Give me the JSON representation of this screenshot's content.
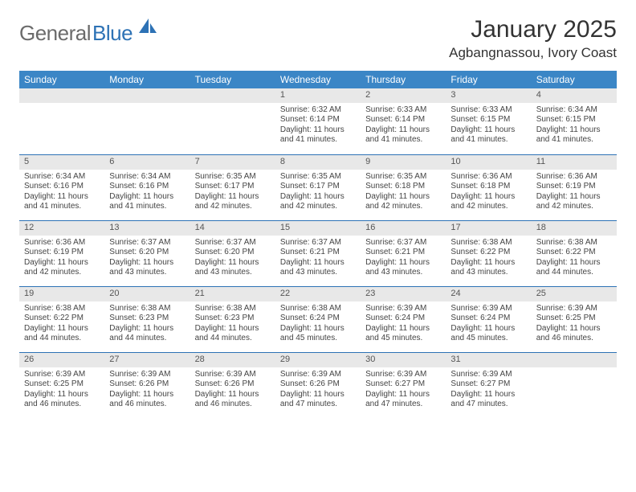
{
  "logo": {
    "text_general": "General",
    "text_blue": "Blue"
  },
  "title": "January 2025",
  "location": "Agbangnassou, Ivory Coast",
  "colors": {
    "header_bg": "#3b86c6",
    "daynum_bg": "#e8e8e8",
    "row_border": "#2d72b5",
    "logo_gray": "#6b6b6b",
    "logo_blue": "#2d72b5"
  },
  "day_headers": [
    "Sunday",
    "Monday",
    "Tuesday",
    "Wednesday",
    "Thursday",
    "Friday",
    "Saturday"
  ],
  "weeks": [
    [
      null,
      null,
      null,
      {
        "n": "1",
        "sr": "6:32 AM",
        "ss": "6:14 PM",
        "dl": "11 hours and 41 minutes."
      },
      {
        "n": "2",
        "sr": "6:33 AM",
        "ss": "6:14 PM",
        "dl": "11 hours and 41 minutes."
      },
      {
        "n": "3",
        "sr": "6:33 AM",
        "ss": "6:15 PM",
        "dl": "11 hours and 41 minutes."
      },
      {
        "n": "4",
        "sr": "6:34 AM",
        "ss": "6:15 PM",
        "dl": "11 hours and 41 minutes."
      }
    ],
    [
      {
        "n": "5",
        "sr": "6:34 AM",
        "ss": "6:16 PM",
        "dl": "11 hours and 41 minutes."
      },
      {
        "n": "6",
        "sr": "6:34 AM",
        "ss": "6:16 PM",
        "dl": "11 hours and 41 minutes."
      },
      {
        "n": "7",
        "sr": "6:35 AM",
        "ss": "6:17 PM",
        "dl": "11 hours and 42 minutes."
      },
      {
        "n": "8",
        "sr": "6:35 AM",
        "ss": "6:17 PM",
        "dl": "11 hours and 42 minutes."
      },
      {
        "n": "9",
        "sr": "6:35 AM",
        "ss": "6:18 PM",
        "dl": "11 hours and 42 minutes."
      },
      {
        "n": "10",
        "sr": "6:36 AM",
        "ss": "6:18 PM",
        "dl": "11 hours and 42 minutes."
      },
      {
        "n": "11",
        "sr": "6:36 AM",
        "ss": "6:19 PM",
        "dl": "11 hours and 42 minutes."
      }
    ],
    [
      {
        "n": "12",
        "sr": "6:36 AM",
        "ss": "6:19 PM",
        "dl": "11 hours and 42 minutes."
      },
      {
        "n": "13",
        "sr": "6:37 AM",
        "ss": "6:20 PM",
        "dl": "11 hours and 43 minutes."
      },
      {
        "n": "14",
        "sr": "6:37 AM",
        "ss": "6:20 PM",
        "dl": "11 hours and 43 minutes."
      },
      {
        "n": "15",
        "sr": "6:37 AM",
        "ss": "6:21 PM",
        "dl": "11 hours and 43 minutes."
      },
      {
        "n": "16",
        "sr": "6:37 AM",
        "ss": "6:21 PM",
        "dl": "11 hours and 43 minutes."
      },
      {
        "n": "17",
        "sr": "6:38 AM",
        "ss": "6:22 PM",
        "dl": "11 hours and 43 minutes."
      },
      {
        "n": "18",
        "sr": "6:38 AM",
        "ss": "6:22 PM",
        "dl": "11 hours and 44 minutes."
      }
    ],
    [
      {
        "n": "19",
        "sr": "6:38 AM",
        "ss": "6:22 PM",
        "dl": "11 hours and 44 minutes."
      },
      {
        "n": "20",
        "sr": "6:38 AM",
        "ss": "6:23 PM",
        "dl": "11 hours and 44 minutes."
      },
      {
        "n": "21",
        "sr": "6:38 AM",
        "ss": "6:23 PM",
        "dl": "11 hours and 44 minutes."
      },
      {
        "n": "22",
        "sr": "6:38 AM",
        "ss": "6:24 PM",
        "dl": "11 hours and 45 minutes."
      },
      {
        "n": "23",
        "sr": "6:39 AM",
        "ss": "6:24 PM",
        "dl": "11 hours and 45 minutes."
      },
      {
        "n": "24",
        "sr": "6:39 AM",
        "ss": "6:24 PM",
        "dl": "11 hours and 45 minutes."
      },
      {
        "n": "25",
        "sr": "6:39 AM",
        "ss": "6:25 PM",
        "dl": "11 hours and 46 minutes."
      }
    ],
    [
      {
        "n": "26",
        "sr": "6:39 AM",
        "ss": "6:25 PM",
        "dl": "11 hours and 46 minutes."
      },
      {
        "n": "27",
        "sr": "6:39 AM",
        "ss": "6:26 PM",
        "dl": "11 hours and 46 minutes."
      },
      {
        "n": "28",
        "sr": "6:39 AM",
        "ss": "6:26 PM",
        "dl": "11 hours and 46 minutes."
      },
      {
        "n": "29",
        "sr": "6:39 AM",
        "ss": "6:26 PM",
        "dl": "11 hours and 47 minutes."
      },
      {
        "n": "30",
        "sr": "6:39 AM",
        "ss": "6:27 PM",
        "dl": "11 hours and 47 minutes."
      },
      {
        "n": "31",
        "sr": "6:39 AM",
        "ss": "6:27 PM",
        "dl": "11 hours and 47 minutes."
      },
      null
    ]
  ],
  "labels": {
    "sunrise": "Sunrise:",
    "sunset": "Sunset:",
    "daylight": "Daylight:"
  }
}
